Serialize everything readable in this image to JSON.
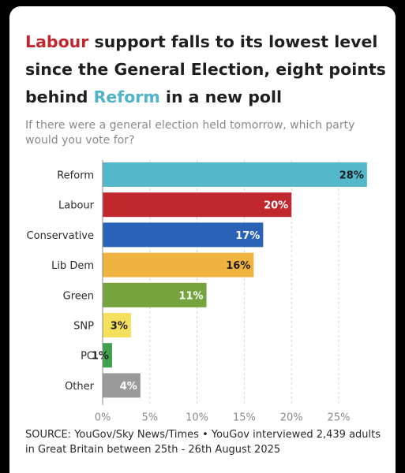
{
  "title": {
    "part1": "Labour",
    "part2": " support falls to its lowest level since the General Election, eight points behind ",
    "part3": "Reform",
    "part4": " in a new poll"
  },
  "subtitle": "If there were a general election held tomorrow, which party would you vote for?",
  "source": "SOURCE: YouGov/Sky News/Times • YouGov interviewed 2,439 adults in Great Britain between 25th - 26th August 2025",
  "colors": {
    "labour": "#c0282d",
    "reform": "#4fb4c8"
  },
  "chart_data": {
    "type": "bar",
    "orientation": "horizontal",
    "categories": [
      "Reform",
      "Labour",
      "Conservative",
      "Lib Dem",
      "Green",
      "SNP",
      "PC",
      "Other"
    ],
    "values": [
      28,
      20,
      17,
      16,
      11,
      3,
      1,
      4
    ],
    "value_labels": [
      "28%",
      "20%",
      "17%",
      "16%",
      "11%",
      "3%",
      "1%",
      "4%"
    ],
    "colors": [
      "#55b7ca",
      "#c0282d",
      "#2a62b8",
      "#f0b33f",
      "#76a33d",
      "#f4e05c",
      "#3fa04d",
      "#9a9a9a"
    ],
    "label_colors": [
      "#1f1f1f",
      "#ffffff",
      "#ffffff",
      "#1f1f1f",
      "#ffffff",
      "#1f1f1f",
      "#1f1f1f",
      "#ffffff"
    ],
    "xticks": [
      0,
      5,
      10,
      15,
      20,
      25
    ],
    "xtick_labels": [
      "0%",
      "5%",
      "10%",
      "15%",
      "20%",
      "25%"
    ],
    "xlim": [
      0,
      28
    ],
    "grid": true
  }
}
